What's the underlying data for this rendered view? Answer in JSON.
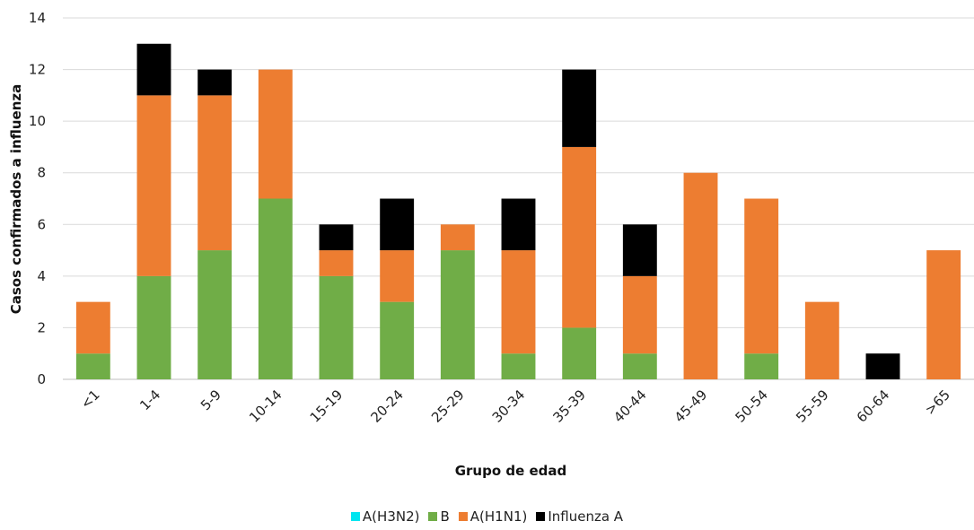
{
  "chart_data": {
    "type": "bar",
    "stacked": true,
    "categories": [
      "<1",
      "1-4",
      "5-9",
      "10-14",
      "15-19",
      "20-24",
      "25-29",
      "30-34",
      "35-39",
      "40-44",
      "45-49",
      "50-54",
      "55-59",
      "60-64",
      ">65"
    ],
    "series": [
      {
        "name": "A(H3N2)",
        "color": "#00E5F0",
        "values": [
          0,
          0,
          0,
          0,
          0,
          0,
          0,
          0,
          0,
          0,
          0,
          0,
          0,
          0,
          0
        ]
      },
      {
        "name": "B",
        "color": "#70AD47",
        "values": [
          1,
          4,
          5,
          7,
          4,
          3,
          5,
          1,
          2,
          1,
          0,
          1,
          0,
          0,
          0
        ]
      },
      {
        "name": "A(H1N1)",
        "color": "#ED7D31",
        "values": [
          2,
          7,
          6,
          5,
          1,
          2,
          1,
          4,
          7,
          3,
          8,
          6,
          3,
          0,
          5
        ]
      },
      {
        "name": "Influenza A",
        "color": "#000000",
        "values": [
          0,
          2,
          1,
          0,
          1,
          2,
          0,
          2,
          3,
          2,
          0,
          0,
          0,
          1,
          0
        ]
      }
    ],
    "title": "",
    "xlabel": "Grupo de edad",
    "ylabel": "Casos confirmados  a influenza",
    "ylim": [
      0,
      14
    ],
    "yticks": [
      "0",
      "2",
      "4",
      "6",
      "8",
      "10",
      "12",
      "14"
    ],
    "grid": true,
    "legend_position": "bottom"
  }
}
